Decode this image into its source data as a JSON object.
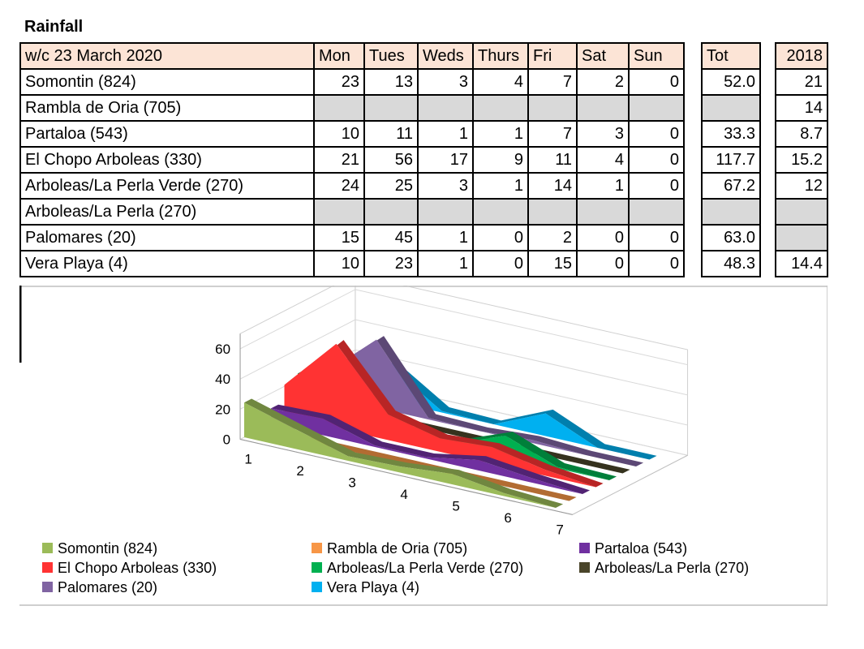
{
  "title": "Rainfall",
  "table": {
    "corner": "w/c  23 March 2020",
    "days": [
      "Mon",
      "Tues",
      "Weds",
      "Thurs",
      "Fri",
      "Sat",
      "Sun"
    ],
    "tot_header": "Tot",
    "year_header": "2018",
    "rows": [
      {
        "name": "Somontin (824)",
        "days": [
          "23",
          "13",
          "3",
          "4",
          "7",
          "2",
          "0"
        ],
        "tot": "52.0",
        "year": "21"
      },
      {
        "name": "Rambla de Oria (705)",
        "days": [
          "",
          "",
          "",
          "",
          "",
          "",
          ""
        ],
        "tot": "",
        "year": "14"
      },
      {
        "name": "Partaloa (543)",
        "days": [
          "10",
          "11",
          "1",
          "1",
          "7",
          "3",
          "0"
        ],
        "tot": "33.3",
        "year": "8.7"
      },
      {
        "name": "El Chopo Arboleas (330)",
        "days": [
          "21",
          "56",
          "17",
          "9",
          "11",
          "4",
          "0"
        ],
        "tot": "117.7",
        "year": "15.2"
      },
      {
        "name": "Arboleas/La Perla Verde (270)",
        "days": [
          "24",
          "25",
          "3",
          "1",
          "14",
          "1",
          "0"
        ],
        "tot": "67.2",
        "year": "12"
      },
      {
        "name": "Arboleas/La Perla (270)",
        "days": [
          "",
          "",
          "",
          "",
          "",
          "",
          ""
        ],
        "tot": "",
        "year": ""
      },
      {
        "name": "Palomares (20)",
        "days": [
          "15",
          "45",
          "1",
          "0",
          "2",
          "0",
          "0"
        ],
        "tot": "63.0",
        "year": ""
      },
      {
        "name": "Vera Playa (4)",
        "days": [
          "10",
          "23",
          "1",
          "0",
          "15",
          "0",
          "0"
        ],
        "tot": "48.3",
        "year": "14.4"
      }
    ]
  },
  "chart_data": {
    "type": "area",
    "x": [
      "1",
      "2",
      "3",
      "4",
      "5",
      "6",
      "7"
    ],
    "y_ticks": [
      "0",
      "20",
      "40",
      "60"
    ],
    "ylim": [
      0,
      70
    ],
    "legend_position": "bottom",
    "series": [
      {
        "name": "Somontin (824)",
        "color": "#9bbb59",
        "values": [
          23,
          13,
          3,
          4,
          7,
          2,
          0
        ]
      },
      {
        "name": "Rambla de Oria (705)",
        "color": "#f79646",
        "values": [
          0,
          0,
          0,
          0,
          0,
          0,
          0
        ]
      },
      {
        "name": "Partaloa (543)",
        "color": "#7030a0",
        "values": [
          10,
          11,
          1,
          1,
          7,
          3,
          0
        ]
      },
      {
        "name": "El Chopo Arboleas (330)",
        "color": "#ff3333",
        "values": [
          21,
          56,
          17,
          9,
          11,
          4,
          0
        ]
      },
      {
        "name": "Arboleas/La Perla Verde (270)",
        "color": "#00b050",
        "values": [
          24,
          25,
          3,
          1,
          14,
          1,
          0
        ]
      },
      {
        "name": "Arboleas/La Perla (270)",
        "color": "#4a452a",
        "values": [
          0,
          0,
          0,
          0,
          0,
          0,
          0
        ]
      },
      {
        "name": "Palomares (20)",
        "color": "#8064a2",
        "values": [
          15,
          45,
          1,
          0,
          2,
          0,
          0
        ]
      },
      {
        "name": "Vera Playa (4)",
        "color": "#00b0f0",
        "values": [
          10,
          23,
          1,
          0,
          15,
          0,
          0
        ]
      }
    ]
  }
}
